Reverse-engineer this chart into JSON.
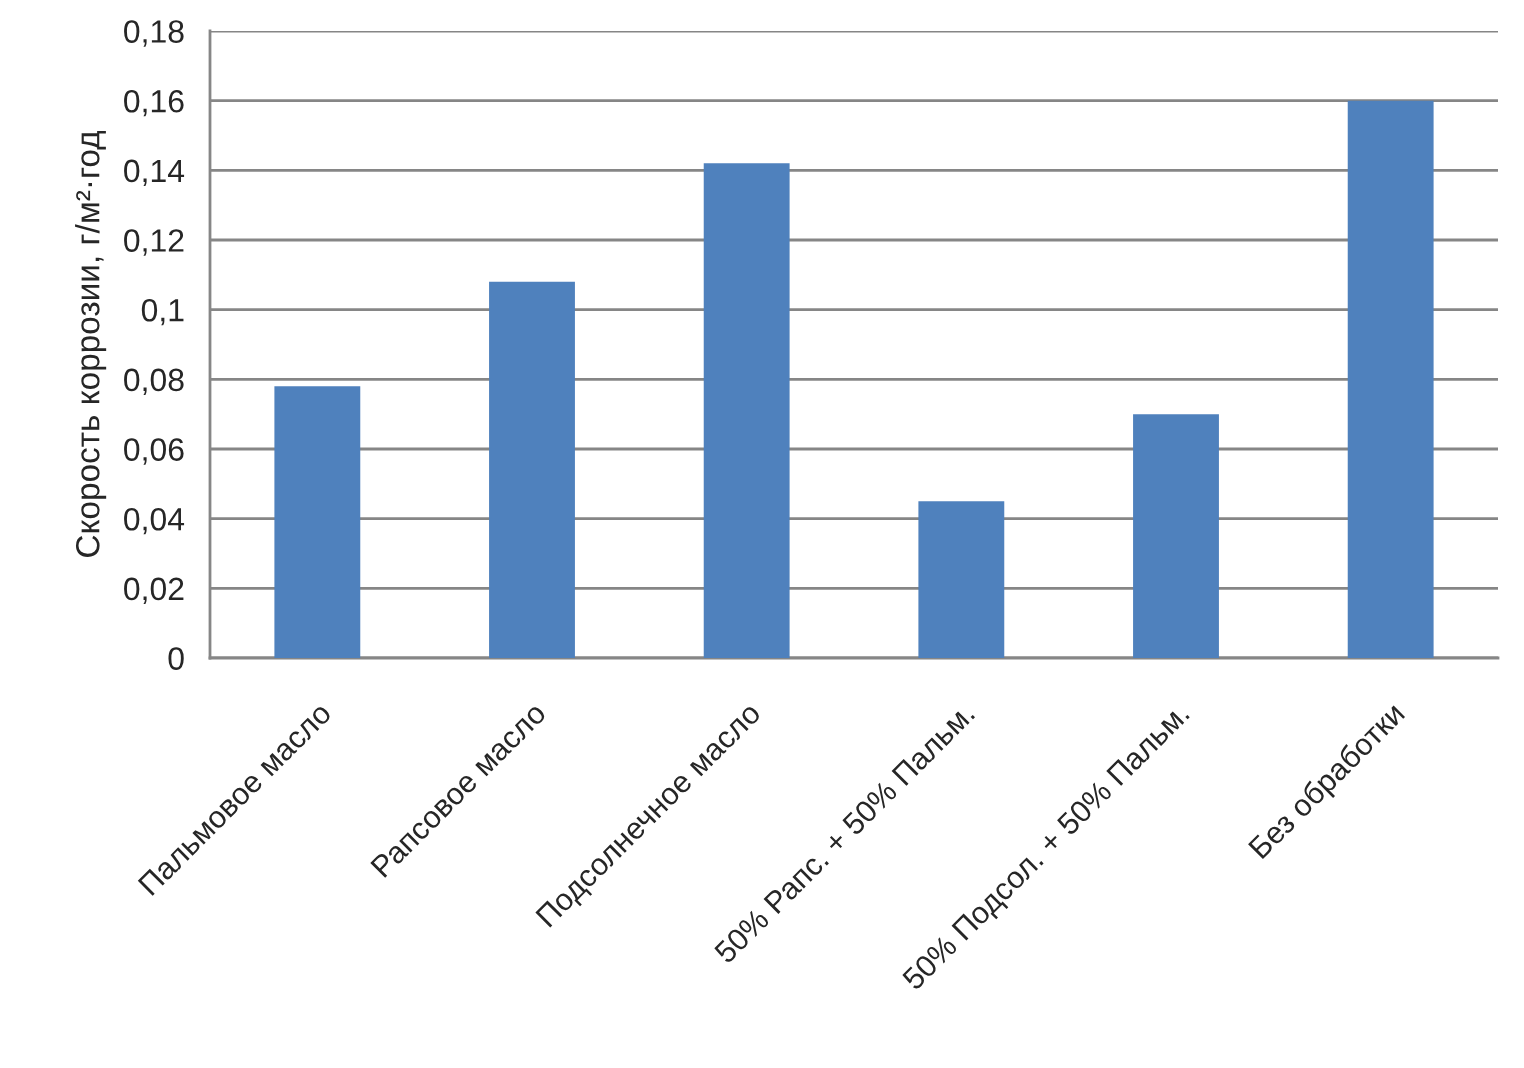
{
  "chart_data": {
    "type": "bar",
    "ylabel": "Скорость коррозии, г/м²·год",
    "categories": [
      "Пальмовое масло",
      "Рапсовое масло",
      "Подсолнечное масло",
      "50% Рапс. + 50% Пальм.",
      "50% Подсол. + 50% Пальм.",
      "Без обработки"
    ],
    "values": [
      0.078,
      0.108,
      0.142,
      0.045,
      0.07,
      0.16
    ],
    "color": "#4f81bd",
    "ylim": [
      0,
      0.18
    ],
    "yticks": [
      0,
      {
        "value": 0.02,
        "label": "0,02"
      },
      {
        "value": 0.04,
        "label": "0,04"
      },
      {
        "value": 0.06,
        "label": "0,06"
      },
      {
        "value": 0.08,
        "label": "0,08"
      },
      {
        "value": 0.1,
        "label": "0,1"
      },
      {
        "value": 0.12,
        "label": "0,12"
      },
      {
        "value": 0.14,
        "label": "0,14"
      },
      {
        "value": 0.16,
        "label": "0,16"
      },
      {
        "value": 0.18,
        "label": "0,18"
      }
    ],
    "grid": "y"
  }
}
